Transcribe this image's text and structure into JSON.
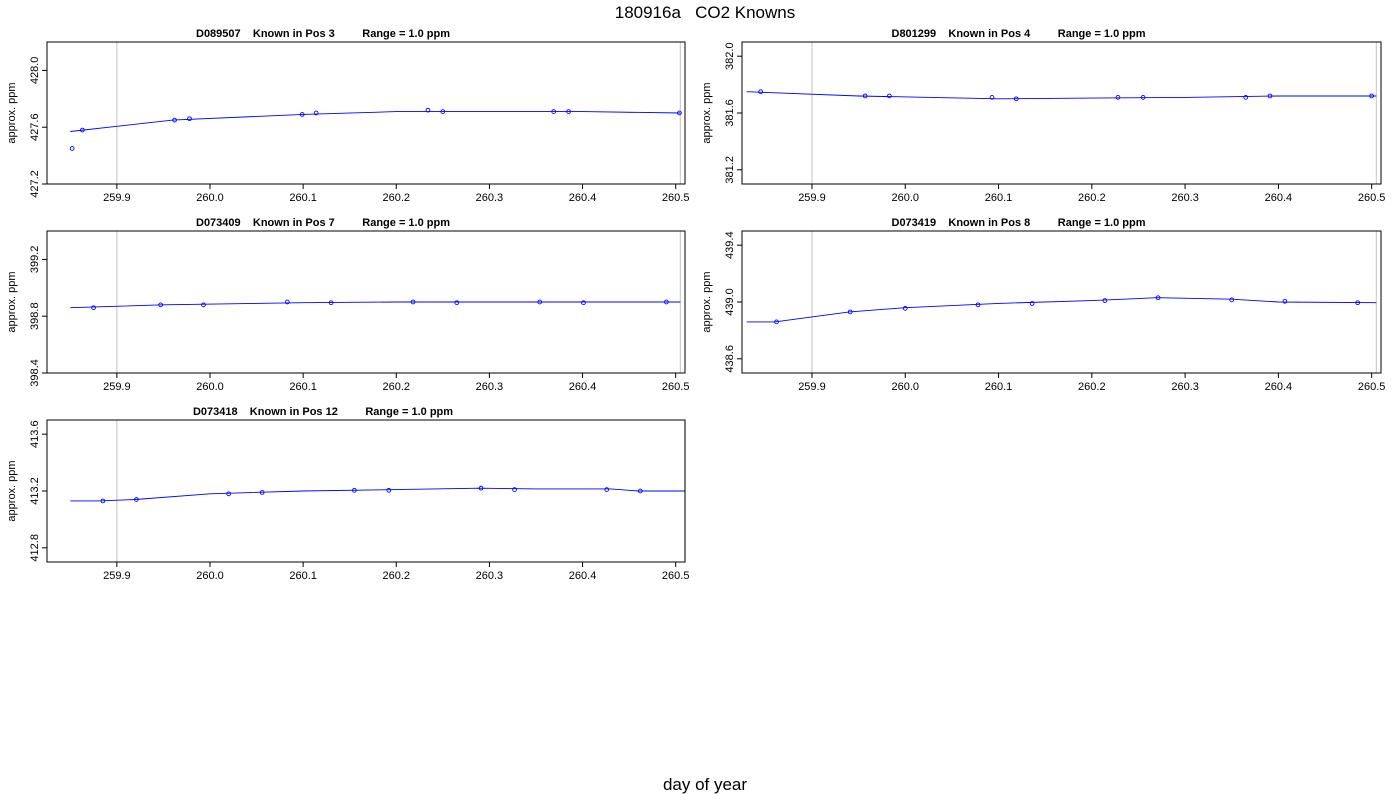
{
  "title": "180916a   CO2 Knowns",
  "x_axis_title": "day of year",
  "colors": {
    "line": "#0000ff",
    "reference": "#cccccc",
    "frame": "#000000"
  },
  "chart_data": [
    {
      "type": "line",
      "title": "D089507    Known in Pos 3         Range = 1.0 ppm",
      "ylabel": "approx. ppm",
      "xlim": [
        259.825,
        260.51
      ],
      "ylim": [
        427.2,
        428.2
      ],
      "x_ticks": [
        259.9,
        260.0,
        260.1,
        260.2,
        260.3,
        260.4,
        260.5
      ],
      "x_tick_labels": [
        "259.9",
        "260.0",
        "260.1",
        "260.2",
        "260.3",
        "260.4",
        "260.5"
      ],
      "y_ticks": [
        427.2,
        427.6,
        428.0
      ],
      "y_tick_labels": [
        "427.2",
        "427.6",
        "428.0"
      ],
      "reference_x": [
        259.9,
        260.505
      ],
      "fit_x": [
        259.85,
        259.96,
        260.1,
        260.2,
        260.3,
        260.4,
        260.505
      ],
      "fit_y": [
        427.57,
        427.65,
        427.69,
        427.71,
        427.71,
        427.71,
        427.7
      ],
      "points": [
        {
          "x": 259.852,
          "y": 427.45
        },
        {
          "x": 259.863,
          "y": 427.58
        },
        {
          "x": 259.962,
          "y": 427.65
        },
        {
          "x": 259.978,
          "y": 427.66
        },
        {
          "x": 260.099,
          "y": 427.69
        },
        {
          "x": 260.114,
          "y": 427.7
        },
        {
          "x": 260.234,
          "y": 427.72
        },
        {
          "x": 260.25,
          "y": 427.71
        },
        {
          "x": 260.369,
          "y": 427.71
        },
        {
          "x": 260.385,
          "y": 427.71
        },
        {
          "x": 260.504,
          "y": 427.7
        }
      ]
    },
    {
      "type": "line",
      "title": "D801299    Known in Pos 4         Range = 1.0 ppm",
      "ylabel": "approx. ppm",
      "xlim": [
        259.825,
        260.51
      ],
      "ylim": [
        381.1,
        382.1
      ],
      "x_ticks": [
        259.9,
        260.0,
        260.1,
        260.2,
        260.3,
        260.4,
        260.5
      ],
      "x_tick_labels": [
        "259.9",
        "260.0",
        "260.1",
        "260.2",
        "260.3",
        "260.4",
        "260.5"
      ],
      "y_ticks": [
        381.2,
        381.6,
        382.0
      ],
      "y_tick_labels": [
        "381.2",
        "381.6",
        "382.0"
      ],
      "reference_x": [
        259.9,
        260.505
      ],
      "fit_x": [
        259.83,
        259.95,
        260.1,
        260.2,
        260.3,
        260.4,
        260.505
      ],
      "fit_y": [
        381.75,
        381.72,
        381.7,
        381.705,
        381.71,
        381.72,
        381.72
      ],
      "points": [
        {
          "x": 259.845,
          "y": 381.75
        },
        {
          "x": 259.957,
          "y": 381.72
        },
        {
          "x": 259.983,
          "y": 381.72
        },
        {
          "x": 260.093,
          "y": 381.71
        },
        {
          "x": 260.119,
          "y": 381.7
        },
        {
          "x": 260.228,
          "y": 381.71
        },
        {
          "x": 260.255,
          "y": 381.71
        },
        {
          "x": 260.365,
          "y": 381.71
        },
        {
          "x": 260.391,
          "y": 381.72
        },
        {
          "x": 260.5,
          "y": 381.72
        }
      ]
    },
    {
      "type": "line",
      "title": "D073409    Known in Pos 7         Range = 1.0 ppm",
      "ylabel": "approx. ppm",
      "xlim": [
        259.825,
        260.51
      ],
      "ylim": [
        398.4,
        399.4
      ],
      "x_ticks": [
        259.9,
        260.0,
        260.1,
        260.2,
        260.3,
        260.4,
        260.5
      ],
      "x_tick_labels": [
        "259.9",
        "260.0",
        "260.1",
        "260.2",
        "260.3",
        "260.4",
        "260.5"
      ],
      "y_ticks": [
        398.4,
        398.8,
        399.2
      ],
      "y_tick_labels": [
        "398.4",
        "398.8",
        "399.2"
      ],
      "reference_x": [
        259.9,
        260.505
      ],
      "fit_x": [
        259.85,
        259.95,
        260.1,
        260.2,
        260.3,
        260.4,
        260.505
      ],
      "fit_y": [
        398.86,
        398.88,
        398.895,
        398.9,
        398.9,
        398.9,
        398.9
      ],
      "points": [
        {
          "x": 259.875,
          "y": 398.86
        },
        {
          "x": 259.947,
          "y": 398.88
        },
        {
          "x": 259.993,
          "y": 398.88
        },
        {
          "x": 260.083,
          "y": 398.9
        },
        {
          "x": 260.13,
          "y": 398.895
        },
        {
          "x": 260.218,
          "y": 398.9
        },
        {
          "x": 260.265,
          "y": 398.895
        },
        {
          "x": 260.354,
          "y": 398.9
        },
        {
          "x": 260.401,
          "y": 398.895
        },
        {
          "x": 260.49,
          "y": 398.9
        }
      ]
    },
    {
      "type": "line",
      "title": "D073419    Known in Pos 8         Range = 1.0 ppm",
      "ylabel": "approx. ppm",
      "xlim": [
        259.825,
        260.51
      ],
      "ylim": [
        438.5,
        439.5
      ],
      "x_ticks": [
        259.9,
        260.0,
        260.1,
        260.2,
        260.3,
        260.4,
        260.5
      ],
      "x_tick_labels": [
        "259.9",
        "260.0",
        "260.1",
        "260.2",
        "260.3",
        "260.4",
        "260.5"
      ],
      "y_ticks": [
        438.6,
        439.0,
        439.4
      ],
      "y_tick_labels": [
        "438.6",
        "439.0",
        "439.4"
      ],
      "reference_x": [
        259.9,
        260.505
      ],
      "fit_x": [
        259.83,
        259.86,
        259.94,
        260.0,
        260.1,
        260.2,
        260.27,
        260.35,
        260.4,
        260.505
      ],
      "fit_y": [
        438.86,
        438.86,
        438.93,
        438.96,
        438.99,
        439.01,
        439.03,
        439.02,
        439.0,
        438.995
      ],
      "points": [
        {
          "x": 259.862,
          "y": 438.86
        },
        {
          "x": 259.941,
          "y": 438.93
        },
        {
          "x": 260.0,
          "y": 438.955
        },
        {
          "x": 260.078,
          "y": 438.98
        },
        {
          "x": 260.136,
          "y": 438.99
        },
        {
          "x": 260.214,
          "y": 439.01
        },
        {
          "x": 260.271,
          "y": 439.03
        },
        {
          "x": 260.35,
          "y": 439.015
        },
        {
          "x": 260.407,
          "y": 439.005
        },
        {
          "x": 260.485,
          "y": 438.995
        }
      ]
    },
    {
      "type": "line",
      "title": "D073418    Known in Pos 12         Range = 1.0 ppm",
      "ylabel": "approx. ppm",
      "xlim": [
        259.825,
        260.51
      ],
      "ylim": [
        412.7,
        413.7
      ],
      "x_ticks": [
        259.9,
        260.0,
        260.1,
        260.2,
        260.3,
        260.4,
        260.5
      ],
      "x_tick_labels": [
        "259.9",
        "260.0",
        "260.1",
        "260.2",
        "260.3",
        "260.4",
        "260.5"
      ],
      "y_ticks": [
        412.8,
        413.2,
        413.6
      ],
      "y_tick_labels": [
        "412.8",
        "413.2",
        "413.6"
      ],
      "reference_x": [
        259.9,
        260.51
      ],
      "fit_x": [
        259.85,
        259.88,
        259.92,
        260.0,
        260.1,
        260.2,
        260.29,
        260.35,
        260.43,
        260.46,
        260.51
      ],
      "fit_y": [
        413.13,
        413.13,
        413.14,
        413.18,
        413.2,
        413.21,
        413.22,
        413.215,
        413.215,
        413.2,
        413.2
      ],
      "points": [
        {
          "x": 259.885,
          "y": 413.13
        },
        {
          "x": 259.921,
          "y": 413.14
        },
        {
          "x": 260.02,
          "y": 413.18
        },
        {
          "x": 260.056,
          "y": 413.19
        },
        {
          "x": 260.155,
          "y": 413.205
        },
        {
          "x": 260.192,
          "y": 413.205
        },
        {
          "x": 260.291,
          "y": 413.22
        },
        {
          "x": 260.327,
          "y": 413.21
        },
        {
          "x": 260.426,
          "y": 413.21
        },
        {
          "x": 260.462,
          "y": 413.2
        }
      ]
    }
  ]
}
